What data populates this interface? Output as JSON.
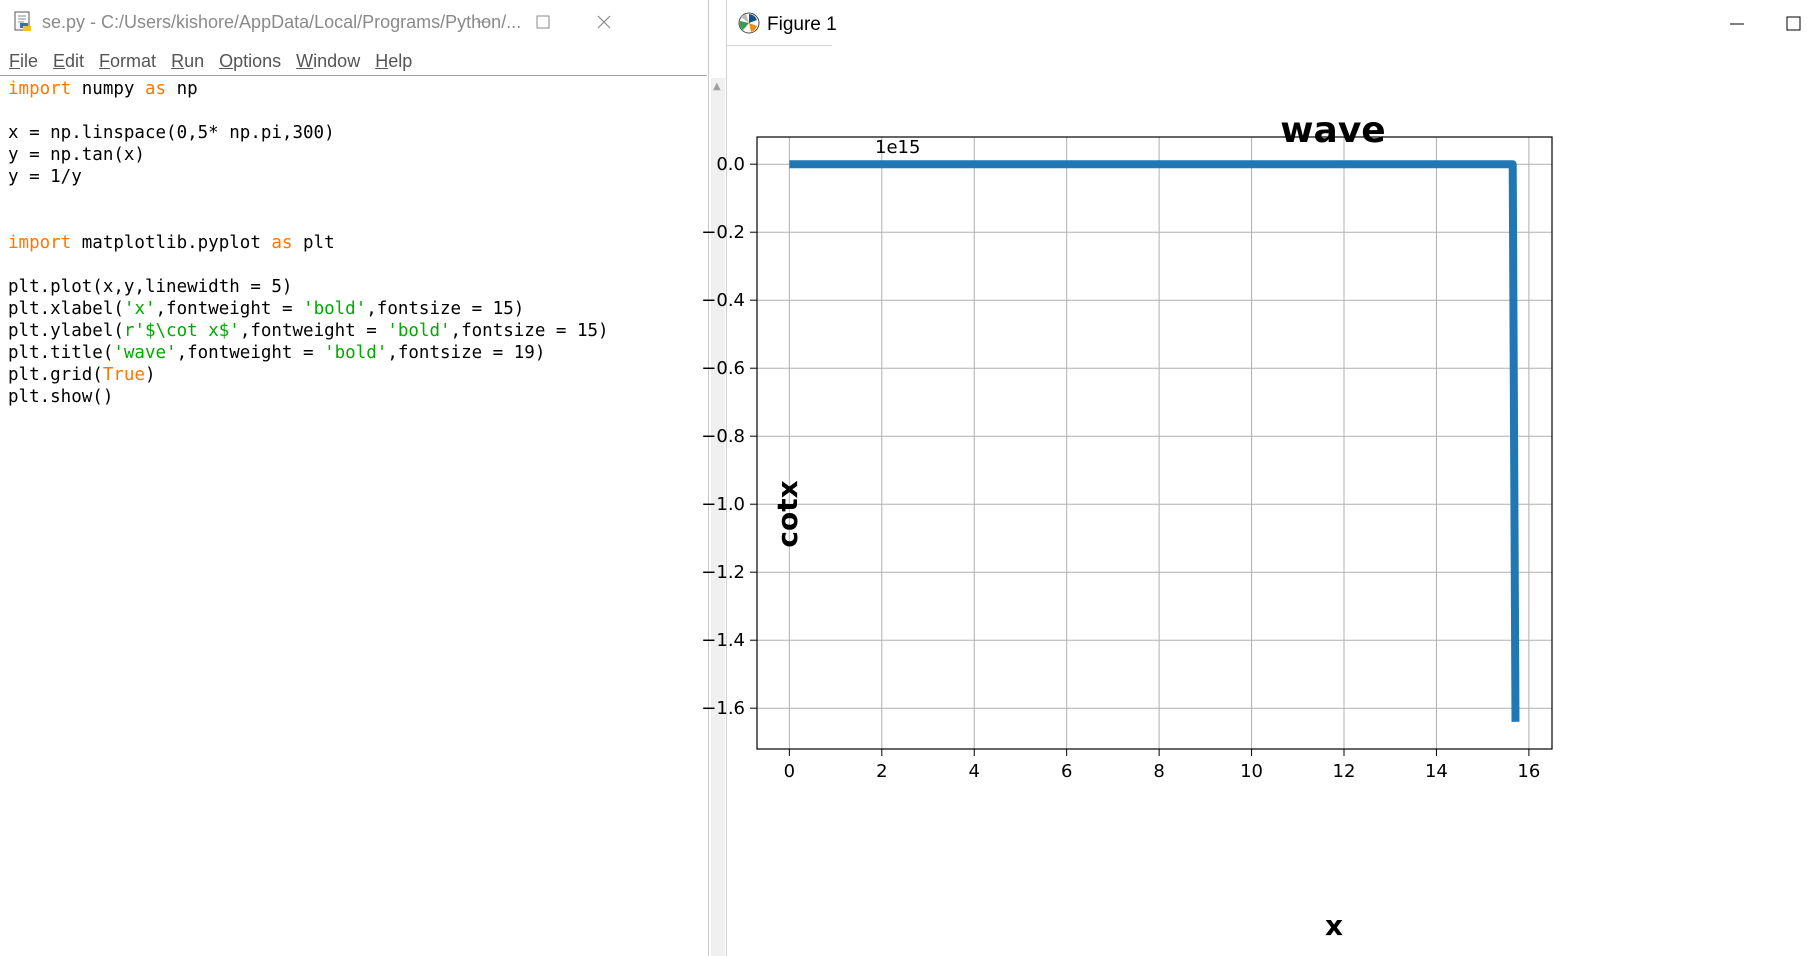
{
  "idle": {
    "title": "se.py - C:/Users/kishore/AppData/Local/Programs/Python/...",
    "menu": [
      {
        "label": "File",
        "ul": "F",
        "rest": "ile"
      },
      {
        "label": "Edit",
        "ul": "E",
        "rest": "dit"
      },
      {
        "label": "Format",
        "ul": "F",
        "rest": "ormat"
      },
      {
        "label": "Run",
        "ul": "R",
        "rest": "un"
      },
      {
        "label": "Options",
        "ul": "O",
        "rest": "ptions"
      },
      {
        "label": "Window",
        "ul": "W",
        "rest": "indow"
      },
      {
        "label": "Help",
        "ul": "H",
        "rest": "elp"
      }
    ],
    "code_lines": [
      "import numpy as np",
      "",
      "x = np.linspace(0,5* np.pi,300)",
      "y = np.tan(x)",
      "y = 1/y",
      "",
      "",
      "import matplotlib.pyplot as plt",
      "",
      "plt.plot(x,y,linewidth = 5)",
      "plt.xlabel('x',fontweight = 'bold',fontsize = 15)",
      "plt.ylabel(r'$\\cot x$',fontweight = 'bold',fontsize = 15)",
      "plt.title('wave',fontweight = 'bold',fontsize = 19)",
      "plt.grid(True)",
      "plt.show()"
    ],
    "colors": {
      "keyword": "#ff7700",
      "string": "#00aa00",
      "text": "#000000"
    }
  },
  "figure": {
    "window_title": "Figure 1",
    "icons": {
      "app": "matplotlib-icon",
      "minimize": "minimize-icon",
      "maximize": "maximize-icon"
    }
  },
  "chart_data": {
    "type": "line",
    "title": "wave",
    "xlabel": "x",
    "ylabel": "cotx",
    "offset_label": "1e15",
    "xlim": [
      -0.7,
      16.5
    ],
    "ylim": [
      -1.72,
      0.08
    ],
    "xticks": [
      0,
      2,
      4,
      6,
      8,
      10,
      12,
      14,
      16
    ],
    "xtick_labels": [
      "0",
      "2",
      "4",
      "6",
      "8",
      "10",
      "12",
      "14",
      "16"
    ],
    "yticks": [
      0.0,
      -0.2,
      -0.4,
      -0.6,
      -0.8,
      -1.0,
      -1.2,
      -1.4,
      -1.6
    ],
    "ytick_labels": [
      "0.0",
      "−0.2",
      "−0.4",
      "−0.6",
      "−0.8",
      "−1.0",
      "−1.2",
      "−1.4",
      "−1.6"
    ],
    "grid": true,
    "series": [
      {
        "color": "#1f77b4",
        "x": [
          0.0,
          15.65,
          15.71
        ],
        "y": [
          0.0,
          0.0,
          -1.64
        ]
      }
    ]
  }
}
